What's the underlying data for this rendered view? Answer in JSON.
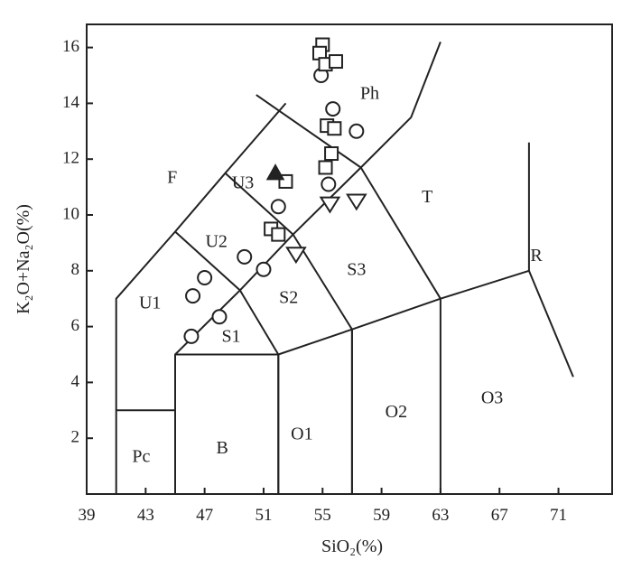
{
  "chart_data": {
    "type": "scatter",
    "title": "",
    "xlabel": "SiO₂(%)",
    "ylabel": "K₂O+Na₂O(%)",
    "xlim": [
      39,
      72
    ],
    "ylim": [
      0,
      17
    ],
    "x_ticks": [
      39,
      43,
      47,
      51,
      55,
      59,
      63,
      67,
      71
    ],
    "y_ticks": [
      2,
      4,
      6,
      8,
      10,
      12,
      14,
      16
    ],
    "grid": false,
    "legend": "none",
    "field_labels": [
      {
        "text": "Pc",
        "x": 42.7,
        "y": 1.3
      },
      {
        "text": "B",
        "x": 48.2,
        "y": 1.6
      },
      {
        "text": "O1",
        "x": 53.6,
        "y": 2.1
      },
      {
        "text": "O2",
        "x": 60.0,
        "y": 2.9
      },
      {
        "text": "O3",
        "x": 66.5,
        "y": 3.4
      },
      {
        "text": "S1",
        "x": 48.8,
        "y": 5.6
      },
      {
        "text": "S2",
        "x": 52.7,
        "y": 7.0
      },
      {
        "text": "S3",
        "x": 57.3,
        "y": 8.0
      },
      {
        "text": "T",
        "x": 62.1,
        "y": 10.6
      },
      {
        "text": "R",
        "x": 69.5,
        "y": 8.5
      },
      {
        "text": "U1",
        "x": 43.3,
        "y": 6.8
      },
      {
        "text": "U2",
        "x": 47.8,
        "y": 9.0
      },
      {
        "text": "U3",
        "x": 49.6,
        "y": 11.1
      },
      {
        "text": "F",
        "x": 44.8,
        "y": 11.3
      },
      {
        "text": "Ph",
        "x": 58.2,
        "y": 14.3
      }
    ],
    "boundaries": [
      [
        [
          41,
          0
        ],
        [
          41,
          3
        ],
        [
          45,
          3
        ],
        [
          45,
          0
        ]
      ],
      [
        [
          45,
          0
        ],
        [
          45,
          5
        ],
        [
          52,
          5
        ],
        [
          52,
          0
        ]
      ],
      [
        [
          52,
          0
        ],
        [
          52,
          5
        ],
        [
          57,
          5.9
        ],
        [
          57,
          0
        ]
      ],
      [
        [
          57,
          0
        ],
        [
          57,
          5.9
        ],
        [
          63,
          7
        ],
        [
          63,
          0
        ]
      ],
      [
        [
          63,
          7
        ],
        [
          69,
          8
        ],
        [
          72,
          4.2
        ]
      ],
      [
        [
          69,
          8
        ],
        [
          69,
          12.6
        ]
      ],
      [
        [
          41,
          3
        ],
        [
          41,
          7
        ],
        [
          45,
          9.4
        ],
        [
          48.4,
          11.5
        ],
        [
          52.5,
          14
        ]
      ],
      [
        [
          45,
          5
        ],
        [
          49.4,
          7.3
        ],
        [
          53,
          9.3
        ],
        [
          57.6,
          11.7
        ],
        [
          61,
          13.5
        ],
        [
          63,
          16.2
        ]
      ],
      [
        [
          45,
          9.4
        ],
        [
          49.4,
          7.3
        ],
        [
          52,
          5
        ]
      ],
      [
        [
          48.4,
          11.5
        ],
        [
          53,
          9.3
        ],
        [
          57,
          5.9
        ]
      ],
      [
        [
          50.5,
          14.3
        ],
        [
          57.6,
          11.7
        ],
        [
          63,
          7
        ]
      ]
    ],
    "series": [
      {
        "marker": "circle",
        "x": [
          46.1,
          46.2,
          47.0,
          48.0,
          49.7,
          51.0,
          52.0,
          55.4,
          55.7,
          57.3,
          54.9
        ],
        "y": [
          5.65,
          7.1,
          7.75,
          6.35,
          8.5,
          8.05,
          10.3,
          11.1,
          13.8,
          13.0,
          15.0
        ]
      },
      {
        "marker": "square",
        "x": [
          55.0,
          54.8,
          55.2,
          55.9,
          55.3,
          55.8,
          55.6,
          55.2,
          51.5,
          52.0,
          52.5
        ],
        "y": [
          16.1,
          15.8,
          15.4,
          15.5,
          13.2,
          13.1,
          12.2,
          11.7,
          9.5,
          9.3,
          11.2
        ]
      },
      {
        "marker": "triangle-down",
        "x": [
          53.2,
          55.5,
          57.3
        ],
        "y": [
          8.6,
          10.4,
          10.5
        ]
      },
      {
        "marker": "triangle-up-filled",
        "x": [
          51.8
        ],
        "y": [
          11.5
        ]
      }
    ]
  }
}
